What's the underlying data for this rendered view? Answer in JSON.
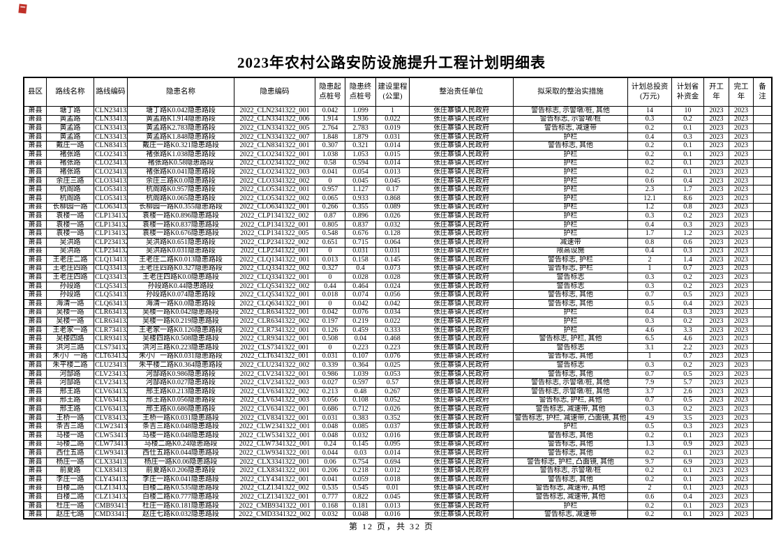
{
  "title": "2023年农村公路安防设施提升工程计划明细表",
  "footer": "第 12 页，共 32 页",
  "table": {
    "column_keys": [
      "county",
      "route-name",
      "route-code",
      "hazard-name",
      "hazard-code",
      "start-stake",
      "end-stake",
      "mileage",
      "responsible-unit",
      "measures",
      "total-investment",
      "provincial-subsidy",
      "start-year",
      "finish-year",
      "remark"
    ],
    "headers": [
      "县区",
      "路线名称",
      "路线编码",
      "隐患名称",
      "隐患编码",
      "隐患起\n点桩号",
      "隐患终\n点桩号",
      "建设里程\n(公里)",
      "整治责任单位",
      "拟采取的整治实措施",
      "计划总投资\n(万元)",
      "计划省\n补资金",
      "开工\n年",
      "完工\n年",
      "备\n注"
    ],
    "rows": [
      [
        "萧县",
        "塘丁路",
        "CLN2341322",
        "塘丁路K0.042隐患路段",
        "2022_CLN2341322_001",
        "0.042",
        "1.099",
        "1",
        "张庄寨镇人民政府",
        "警告标志, 示警墩/桩, 其他",
        "14",
        "10",
        "2023",
        "2023",
        ""
      ],
      [
        "萧县",
        "黄孟路",
        "CLN3341322",
        "黄孟路K1.914隐患路段",
        "2022_CLN3341322_006",
        "1.914",
        "1.936",
        "0.022",
        "张庄寨镇人民政府",
        "警告标志, 示警墩/桩",
        "0.3",
        "0.2",
        "2023",
        "2023",
        ""
      ],
      [
        "萧县",
        "黄孟路",
        "CLN3341322",
        "黄孟路K2.783隐患路段",
        "2022_CLN3341322_005",
        "2.764",
        "2.783",
        "0.019",
        "张庄寨镇人民政府",
        "警告标志, 减速带",
        "0.2",
        "0.1",
        "2023",
        "2023",
        ""
      ],
      [
        "萧县",
        "黄孟路",
        "CLN3341322",
        "黄孟路K1.848隐患路段",
        "2022_CLN3341322_007",
        "1.848",
        "1.879",
        "0.031",
        "张庄寨镇人民政府",
        "护栏",
        "0.4",
        "0.3",
        "2023",
        "2023",
        ""
      ],
      [
        "萧县",
        "戴庄一路",
        "CLN8341322",
        "戴庄一路K0.321隐患路段",
        "2022_CLN8341322_001",
        "0.307",
        "0.321",
        "0.014",
        "张庄寨镇人民政府",
        "警告标志, 其他",
        "0.2",
        "0.1",
        "2023",
        "2023",
        ""
      ],
      [
        "萧县",
        "褚张路",
        "CLO2341322",
        "褚张路K1.038隐患路段",
        "2022_CLO2341322_001",
        "1.038",
        "1.053",
        "0.015",
        "张庄寨镇人民政府",
        "护栏",
        "0.2",
        "0.1",
        "2023",
        "2023",
        ""
      ],
      [
        "萧县",
        "褚张路",
        "CLO2341322",
        "褚张路K0.58隐患路段",
        "2022_CLO2341322_002",
        "0.58",
        "0.594",
        "0.014",
        "张庄寨镇人民政府",
        "护栏",
        "0.2",
        "0.1",
        "2023",
        "2023",
        ""
      ],
      [
        "萧县",
        "褚张路",
        "CLO2341322",
        "褚张路K0.041隐患路段",
        "2022_CLO2341322_003",
        "0.041",
        "0.054",
        "0.013",
        "张庄寨镇人民政府",
        "护栏",
        "0.2",
        "0.1",
        "2023",
        "2023",
        ""
      ],
      [
        "萧县",
        "余庄三路",
        "CLO3341322",
        "余庄三路K0.0隐患路段",
        "2022_CLO3341322_002",
        "0",
        "0.045",
        "0.045",
        "张庄寨镇人民政府",
        "护栏",
        "0.6",
        "0.4",
        "2023",
        "2023",
        ""
      ],
      [
        "萧县",
        "杭阁路",
        "CLO5341322",
        "杭阁路K0.957隐患路段",
        "2022_CLO5341322_001",
        "0.957",
        "1.127",
        "0.17",
        "张庄寨镇人民政府",
        "护栏",
        "2.3",
        "1.7",
        "2023",
        "2023",
        ""
      ],
      [
        "萧县",
        "杭阁路",
        "CLO5341322",
        "杭阁路K0.065隐患路段",
        "2022_CLO5341322_002",
        "0.065",
        "0.933",
        "0.868",
        "张庄寨镇人民政府",
        "护栏",
        "12.1",
        "8.6",
        "2023",
        "2023",
        ""
      ],
      [
        "萧县",
        "长柳园一路",
        "CLO6341322",
        "长柳园一路K0.355隐患路段",
        "2022_CLO6341322_001",
        "0.266",
        "0.355",
        "0.089",
        "张庄寨镇人民政府",
        "护栏",
        "1.2",
        "0.8",
        "2023",
        "2023",
        ""
      ],
      [
        "萧县",
        "袁楼一路",
        "CLP1341322",
        "袁楼一路K0.896隐患路段",
        "2022_CLP1341322_002",
        "0.87",
        "0.896",
        "0.026",
        "张庄寨镇人民政府",
        "护栏",
        "0.3",
        "0.2",
        "2023",
        "2023",
        ""
      ],
      [
        "萧县",
        "袁楼一路",
        "CLP1341322",
        "袁楼一路K0.837隐患路段",
        "2022_CLP1341322_001",
        "0.805",
        "0.837",
        "0.032",
        "张庄寨镇人民政府",
        "护栏",
        "0.4",
        "0.3",
        "2023",
        "2023",
        ""
      ],
      [
        "萧县",
        "袁楼一路",
        "CLP1341322",
        "袁楼一路K0.676隐患路段",
        "2022_CLP1341322_005",
        "0.548",
        "0.676",
        "0.128",
        "张庄寨镇人民政府",
        "护栏",
        "1.7",
        "1.2",
        "2023",
        "2023",
        ""
      ],
      [
        "萧县",
        "吴洪路",
        "CLP2341322",
        "吴洪路K0.651隐患路段",
        "2022_CLP2341322_002",
        "0.651",
        "0.715",
        "0.064",
        "张庄寨镇人民政府",
        "减速带",
        "0.8",
        "0.6",
        "2023",
        "2023",
        ""
      ],
      [
        "萧县",
        "吴洪路",
        "CLP2341322",
        "吴洪路K0.031隐患路段",
        "2022_CLP2341322_001",
        "0",
        "0.031",
        "0.031",
        "张庄寨镇人民政府",
        "限高设施",
        "0.4",
        "0.3",
        "2023",
        "2023",
        ""
      ],
      [
        "萧县",
        "王老庄二路",
        "CLQ1341322",
        "王老庄二路K0.013隐患路段",
        "2022_CLQ1341322_001",
        "0.013",
        "0.158",
        "0.145",
        "张庄寨镇人民政府",
        "警告标志, 护栏",
        "2",
        "1.4",
        "2023",
        "2023",
        ""
      ],
      [
        "萧县",
        "王老庄四路",
        "CLQ3341322",
        "王老庄四路K0.327隐患路段",
        "2022_CLQ3341322_002",
        "0.327",
        "0.4",
        "0.073",
        "张庄寨镇人民政府",
        "警告标志, 护栏",
        "1",
        "0.7",
        "2023",
        "2023",
        ""
      ],
      [
        "萧县",
        "王老庄四路",
        "CLQ3341322",
        "王老庄四路K0.0隐患路段",
        "2022_CLQ3341322_001",
        "0",
        "0.028",
        "0.028",
        "张庄寨镇人民政府",
        "警告标志",
        "0.3",
        "0.2",
        "2023",
        "2023",
        ""
      ],
      [
        "萧县",
        "孙段路",
        "CLQ5341322",
        "孙段路K0.44隐患路段",
        "2022_CLQ5341322_002",
        "0.44",
        "0.464",
        "0.024",
        "张庄寨镇人民政府",
        "警告标志",
        "0.3",
        "0.2",
        "2023",
        "2023",
        ""
      ],
      [
        "萧县",
        "孙段路",
        "CLQ5341322",
        "孙段路K0.074隐患路段",
        "2022_CLQ5341322_001",
        "0.018",
        "0.074",
        "0.056",
        "张庄寨镇人民政府",
        "警告标志, 其他",
        "0.7",
        "0.5",
        "2023",
        "2023",
        ""
      ],
      [
        "萧县",
        "海清一路",
        "CLQ6341322",
        "海清一路K0.0隐患路段",
        "2022_CLQ6341322_001",
        "0",
        "0.042",
        "0.042",
        "张庄寨镇人民政府",
        "警告标志, 其他",
        "0.5",
        "0.4",
        "2023",
        "2023",
        ""
      ],
      [
        "萧县",
        "吴楼一路",
        "CLR6341322",
        "吴楼一路K0.042隐患路段",
        "2022_CLR6341322_001",
        "0.042",
        "0.076",
        "0.034",
        "张庄寨镇人民政府",
        "护栏",
        "0.4",
        "0.3",
        "2023",
        "2023",
        ""
      ],
      [
        "萧县",
        "吴楼一路",
        "CLR6341322",
        "吴楼一路K0.219隐患路段",
        "2022_CLR6341322_002",
        "0.197",
        "0.219",
        "0.022",
        "张庄寨镇人民政府",
        "护栏",
        "0.3",
        "0.2",
        "2023",
        "2023",
        ""
      ],
      [
        "萧县",
        "王老家一路",
        "CLR7341322",
        "王老家一路K0.126隐患路段",
        "2022_CLR7341322_001",
        "0.126",
        "0.459",
        "0.333",
        "张庄寨镇人民政府",
        "护栏",
        "4.6",
        "3.3",
        "2023",
        "2023",
        ""
      ],
      [
        "萧县",
        "吴楼四路",
        "CLR9341322",
        "吴楼四路K0.508隐患路段",
        "2022_CLR9341322_001",
        "0.508",
        "0.04",
        "0.468",
        "张庄寨镇人民政府",
        "警告标志, 护栏, 其他",
        "6.5",
        "4.6",
        "2023",
        "2023",
        ""
      ],
      [
        "萧县",
        "洪河三路",
        "CLS7341322",
        "洪河三路K0.223隐患路段",
        "2022_CLS7341322_001",
        "0",
        "0.223",
        "0.223",
        "张庄寨镇人民政府",
        "警告标志",
        "3.1",
        "2.2",
        "2023",
        "2023",
        ""
      ],
      [
        "萧县",
        "朱小厂一路",
        "CLT6341322",
        "朱小厂一路K0.031隐患路段",
        "2022_CLT6341322_001",
        "0.031",
        "0.107",
        "0.076",
        "张庄寨镇人民政府",
        "警告标志, 其他",
        "1",
        "0.7",
        "2023",
        "2023",
        ""
      ],
      [
        "萧县",
        "朱平楼二路",
        "CLU2341322",
        "朱平楼二路K0.364隐患路段",
        "2022_CLU2341322_002",
        "0.339",
        "0.364",
        "0.025",
        "张庄寨镇人民政府",
        "警告标志",
        "0.3",
        "0.2",
        "2023",
        "2023",
        ""
      ],
      [
        "萧县",
        "河郜路",
        "CLV2341322",
        "河郜路K0.986隐患路段",
        "2022_CLV2341322_001",
        "0.986",
        "1.039",
        "0.053",
        "张庄寨镇人民政府",
        "警告标志, 其他",
        "0.7",
        "0.5",
        "2023",
        "2023",
        ""
      ],
      [
        "萧县",
        "河郜路",
        "CLV2341322",
        "河郜路K0.027隐患路段",
        "2022_CLV2341322_003",
        "0.027",
        "0.597",
        "0.57",
        "张庄寨镇人民政府",
        "警告标志, 示警墩/桩, 其他",
        "7.9",
        "5.7",
        "2023",
        "2023",
        ""
      ],
      [
        "萧县",
        "邢王路",
        "CLV6341322",
        "邢王路K0.213隐患路段",
        "2022_CLV6341322_002",
        "0.213",
        "0.48",
        "0.267",
        "张庄寨镇人民政府",
        "警告标志, 示警墩/桩, 其他",
        "3.7",
        "2.6",
        "2023",
        "2023",
        ""
      ],
      [
        "萧县",
        "邢王路",
        "CLV6341322",
        "邢王路K0.056隐患路段",
        "2022_CLV6341322_003",
        "0.056",
        "0.108",
        "0.052",
        "张庄寨镇人民政府",
        "警告标志, 护栏, 其他",
        "0.7",
        "0.5",
        "2023",
        "2023",
        ""
      ],
      [
        "萧县",
        "邢王路",
        "CLV6341322",
        "邢王路K0.686隐患路段",
        "2022_CLV6341322_001",
        "0.686",
        "0.712",
        "0.026",
        "张庄寨镇人民政府",
        "警告标志, 减速带, 其他",
        "0.3",
        "0.2",
        "2023",
        "2023",
        ""
      ],
      [
        "萧县",
        "王桥一路",
        "CLV8341322",
        "王桥一路K0.031隐患路段",
        "2022_CLV8341322_001",
        "0.031",
        "0.383",
        "0.352",
        "张庄寨镇人民政府",
        "警告标志, 护栏, 减速带, 凸面镜, 其他",
        "4.9",
        "3.5",
        "2023",
        "2023",
        ""
      ],
      [
        "萧县",
        "条吉三路",
        "CLW2341322",
        "条吉三路K0.048隐患路段",
        "2022_CLW2341322_001",
        "0.048",
        "0.085",
        "0.037",
        "张庄寨镇人民政府",
        "护栏",
        "0.5",
        "0.3",
        "2023",
        "2023",
        ""
      ],
      [
        "萧县",
        "马楼一路",
        "CLW5341322",
        "马楼一路K0.048隐患路段",
        "2022_CLW5341322_001",
        "0.048",
        "0.032",
        "0.016",
        "张庄寨镇人民政府",
        "警告标志, 其他",
        "0.2",
        "0.1",
        "2023",
        "2023",
        ""
      ],
      [
        "萧县",
        "马楼二路",
        "CLW7341322",
        "马楼二路K0.24隐患路段",
        "2022_CLW7341322_001",
        "0.24",
        "0.145",
        "0.095",
        "张庄寨镇人民政府",
        "警告标志, 其他",
        "1.3",
        "0.9",
        "2023",
        "2023",
        ""
      ],
      [
        "萧县",
        "西仕五路",
        "CLW9341322",
        "西仕五路K0.044隐患路段",
        "2022_CLW9341322_001",
        "0.044",
        "0.03",
        "0.014",
        "张庄寨镇人民政府",
        "警告标志, 其他",
        "0.2",
        "0.1",
        "2023",
        "2023",
        ""
      ],
      [
        "萧县",
        "杨庄一路",
        "CLX3341322",
        "杨庄一路K0.06隐患路段",
        "2022_CLX3341322_001",
        "0.06",
        "0.754",
        "0.694",
        "张庄寨镇人民政府",
        "警告标志, 护栏, 凸面镜, 其他",
        "9.7",
        "6.9",
        "2023",
        "2023",
        ""
      ],
      [
        "萧县",
        "前夏路",
        "CLX8341322",
        "前夏路K0.206隐患路段",
        "2022_CLX8341322_001",
        "0.206",
        "0.218",
        "0.012",
        "张庄寨镇人民政府",
        "警告标志, 示警墩/桩",
        "0.2",
        "0.1",
        "2023",
        "2023",
        ""
      ],
      [
        "萧县",
        "李庄一路",
        "CLY4341322",
        "李庄一路K0.041隐患路段",
        "2022_CLY4341322_001",
        "0.041",
        "0.059",
        "0.018",
        "张庄寨镇人民政府",
        "警告标志, 其他",
        "0.2",
        "0.1",
        "2023",
        "2023",
        ""
      ],
      [
        "萧县",
        "白楼二路",
        "CLZ1341322",
        "白楼二路K0.535隐患路段",
        "2022_CLZ1341322_002",
        "0.535",
        "0.545",
        "0.01",
        "张庄寨镇人民政府",
        "警告标志, 减速带, 其他",
        "2",
        "0.1",
        "2023",
        "2023",
        ""
      ],
      [
        "萧县",
        "白楼二路",
        "CLZ1341322",
        "白楼二路K0.777隐患路段",
        "2022_CLZ1341322_001",
        "0.777",
        "0.822",
        "0.045",
        "张庄寨镇人民政府",
        "警告标志, 减速带, 其他",
        "0.6",
        "0.4",
        "2023",
        "2023",
        ""
      ],
      [
        "萧县",
        "杜庄一路",
        "CMB9341322",
        "杜庄一路K0.181隐患路段",
        "2022_CMB9341322_001",
        "0.168",
        "0.181",
        "0.013",
        "张庄寨镇人民政府",
        "护栏",
        "0.2",
        "0.1",
        "2023",
        "2023",
        ""
      ],
      [
        "萧县",
        "赵庄七路",
        "CMD3341322",
        "赵庄七路K0.032隐患路段",
        "2022_CMD3341322_002",
        "0.032",
        "0.048",
        "0.016",
        "张庄寨镇人民政府",
        "警告标志, 减速带",
        "0.2",
        "0.1",
        "2023",
        "2023",
        ""
      ]
    ]
  }
}
